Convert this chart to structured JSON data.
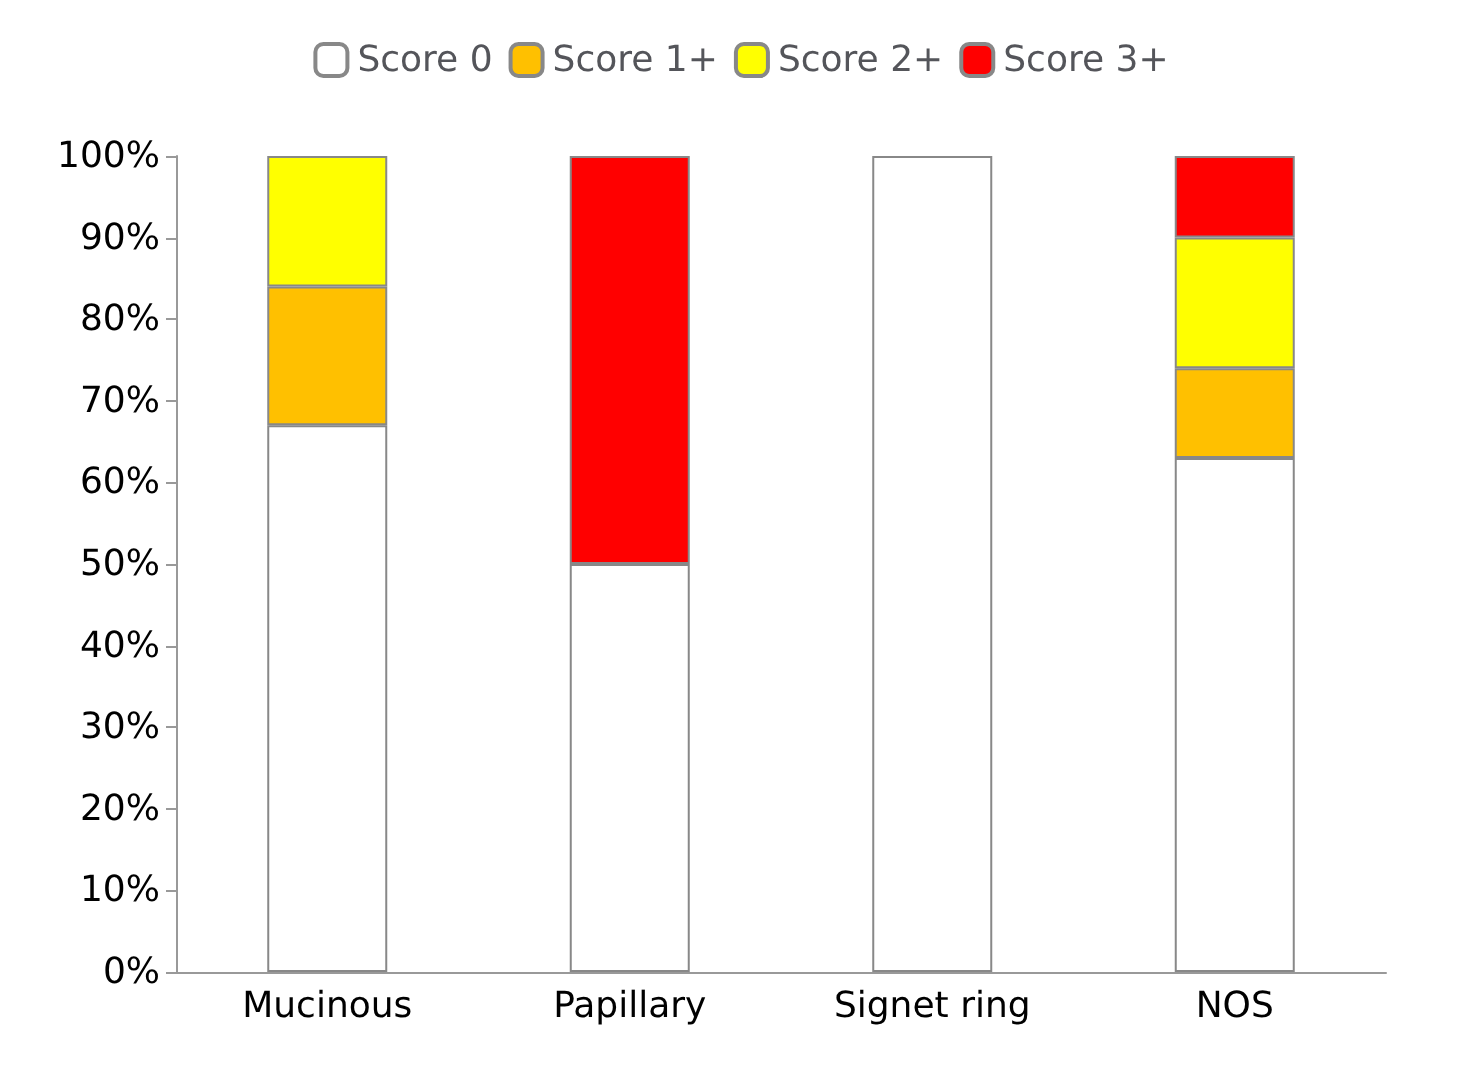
{
  "chart_data": {
    "type": "bar",
    "stacked": true,
    "categories": [
      "Mucinous",
      "Papillary",
      "Signet ring",
      "NOS"
    ],
    "series": [
      {
        "name": "Score 0",
        "color": "#ffffff",
        "values": [
          67,
          50,
          100,
          63
        ]
      },
      {
        "name": "Score 1+",
        "color": "#ffc000",
        "values": [
          17,
          0,
          0,
          11
        ]
      },
      {
        "name": "Score 2+",
        "color": "#ffff00",
        "values": [
          16,
          0,
          0,
          16
        ]
      },
      {
        "name": "Score 3+",
        "color": "#ff0000",
        "values": [
          0,
          50,
          0,
          10
        ]
      }
    ],
    "ylim": [
      0,
      100
    ],
    "yticks": [
      {
        "value": 0,
        "label": "0%"
      },
      {
        "value": 10,
        "label": "10%"
      },
      {
        "value": 20,
        "label": "20%"
      },
      {
        "value": 30,
        "label": "30%"
      },
      {
        "value": 40,
        "label": "40%"
      },
      {
        "value": 50,
        "label": "50%"
      },
      {
        "value": 60,
        "label": "60%"
      },
      {
        "value": 70,
        "label": "70%"
      },
      {
        "value": 80,
        "label": "80%"
      },
      {
        "value": 90,
        "label": "90%"
      },
      {
        "value": 100,
        "label": "100%"
      }
    ],
    "grid": false,
    "legend": "top"
  }
}
